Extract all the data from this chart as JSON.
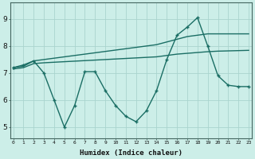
{
  "xlabel": "Humidex (Indice chaleur)",
  "bg_color": "#cceee8",
  "grid_color": "#aad4ce",
  "line_color": "#1a6e64",
  "x_ticks": [
    0,
    1,
    2,
    3,
    4,
    5,
    6,
    7,
    8,
    9,
    10,
    11,
    12,
    13,
    14,
    15,
    16,
    17,
    18,
    19,
    20,
    21,
    22,
    23
  ],
  "y_ticks": [
    5,
    6,
    7,
    8,
    9
  ],
  "ylim": [
    4.6,
    9.6
  ],
  "xlim": [
    -0.3,
    23.3
  ],
  "series1": [
    7.2,
    7.25,
    7.45,
    7.5,
    7.55,
    7.6,
    7.65,
    7.7,
    7.75,
    7.8,
    7.85,
    7.9,
    7.95,
    8.0,
    8.05,
    8.15,
    8.25,
    8.35,
    8.4,
    8.45,
    8.45,
    8.45,
    8.45,
    8.45
  ],
  "series2": [
    7.15,
    7.2,
    7.35,
    7.38,
    7.4,
    7.42,
    7.44,
    7.46,
    7.48,
    7.5,
    7.52,
    7.54,
    7.56,
    7.58,
    7.6,
    7.65,
    7.7,
    7.73,
    7.76,
    7.79,
    7.81,
    7.82,
    7.83,
    7.84
  ],
  "series3_x": [
    0,
    1,
    2,
    3,
    4,
    5,
    6,
    7,
    8,
    9,
    10,
    11,
    12,
    13,
    14,
    15,
    16,
    17,
    18,
    19,
    20,
    21,
    22,
    23
  ],
  "series3_y": [
    7.2,
    7.3,
    7.45,
    7.0,
    6.0,
    5.0,
    5.8,
    7.05,
    7.05,
    6.35,
    5.8,
    5.4,
    5.2,
    5.6,
    6.35,
    7.5,
    8.4,
    8.7,
    9.05,
    8.0,
    6.9,
    6.55,
    6.5,
    6.5
  ]
}
